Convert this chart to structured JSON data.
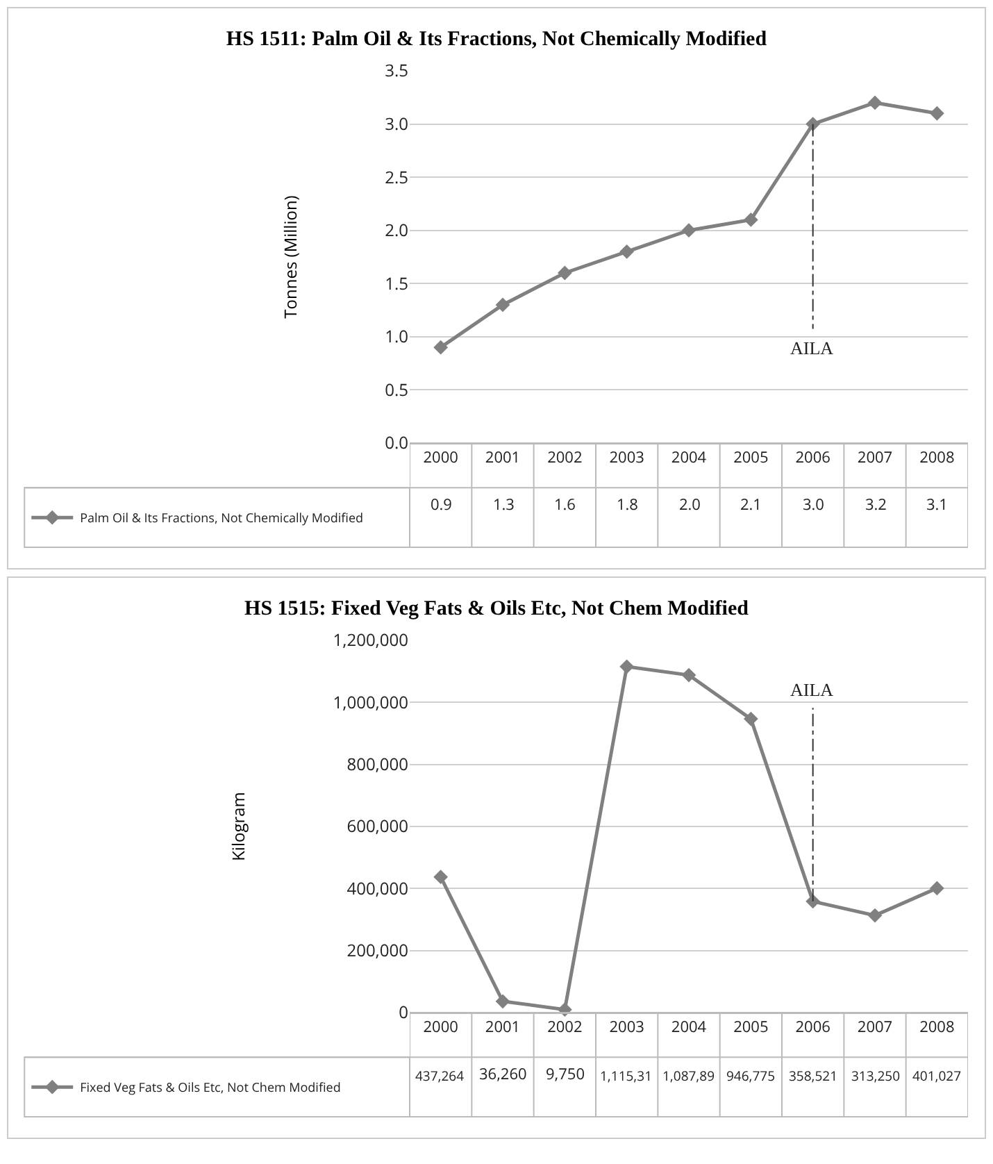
{
  "chart_data": [
    {
      "type": "line",
      "title": "HS 1511: Palm Oil & Its Fractions, Not Chemically Modified",
      "ylabel": "Tonnes (Million)",
      "categories": [
        "2000",
        "2001",
        "2002",
        "2003",
        "2004",
        "2005",
        "2006",
        "2007",
        "2008"
      ],
      "series": [
        {
          "name": "Palm Oil & Its Fractions, Not Chemically Modified",
          "color": "#808080",
          "values": [
            0.9,
            1.3,
            1.6,
            1.8,
            2.0,
            2.1,
            3.0,
            3.2,
            3.1
          ],
          "value_labels": [
            "0.9",
            "1.3",
            "1.6",
            "1.8",
            "2.0",
            "2.1",
            "3.0",
            "3.2",
            "3.1"
          ]
        }
      ],
      "ylim": [
        0,
        3.5
      ],
      "yticks": [
        {
          "value": 0,
          "label": "0.0"
        },
        0.5,
        {
          "value": 1,
          "label": "1.0"
        },
        1.5,
        {
          "value": 2,
          "label": "2.0"
        },
        2.5,
        {
          "value": 3,
          "label": "3.0"
        },
        3.5
      ],
      "ref_lines": [
        {
          "axis": "x",
          "value": "2006",
          "label": "AILA",
          "line_style": "dashdot",
          "color": "#333333"
        }
      ],
      "grid": "y",
      "legend": "bottom left",
      "marker": "diamond",
      "line_style": "solid"
    },
    {
      "type": "line",
      "title": "HS 1515: Fixed Veg Fats & Oils Etc, Not Chem Modified",
      "ylabel": "Kilogram",
      "categories": [
        "2000",
        "2001",
        "2002",
        "2003",
        "2004",
        "2005",
        "2006",
        "2007",
        "2008"
      ],
      "series": [
        {
          "name": "Fixed Veg Fats & Oils Etc, Not Chem Modified",
          "color": "#808080",
          "values": [
            437264,
            36260,
            9750,
            1115310,
            1087890,
            946775,
            358521,
            313250,
            401027
          ],
          "value_labels": [
            "437,264",
            "36,260",
            "9,750",
            "1,115,31",
            "1,087,89",
            "946,775",
            "358,521",
            "313,250",
            "401,027"
          ]
        }
      ],
      "ylim": [
        0,
        1200000
      ],
      "yticks": [
        0,
        {
          "value": 200000,
          "label": "200,000"
        },
        {
          "value": 400000,
          "label": "400,000"
        },
        {
          "value": 600000,
          "label": "600,000"
        },
        {
          "value": 800000,
          "label": "800,000"
        },
        {
          "value": 1000000,
          "label": "1,000,000"
        },
        {
          "value": 1200000,
          "label": "1,200,000"
        }
      ],
      "ref_lines": [
        {
          "axis": "x",
          "value": "2006",
          "label": "AILA",
          "line_style": "dashdot",
          "color": "#333333"
        }
      ],
      "grid": "y",
      "legend": "bottom left",
      "marker": "diamond",
      "line_style": "solid"
    }
  ]
}
